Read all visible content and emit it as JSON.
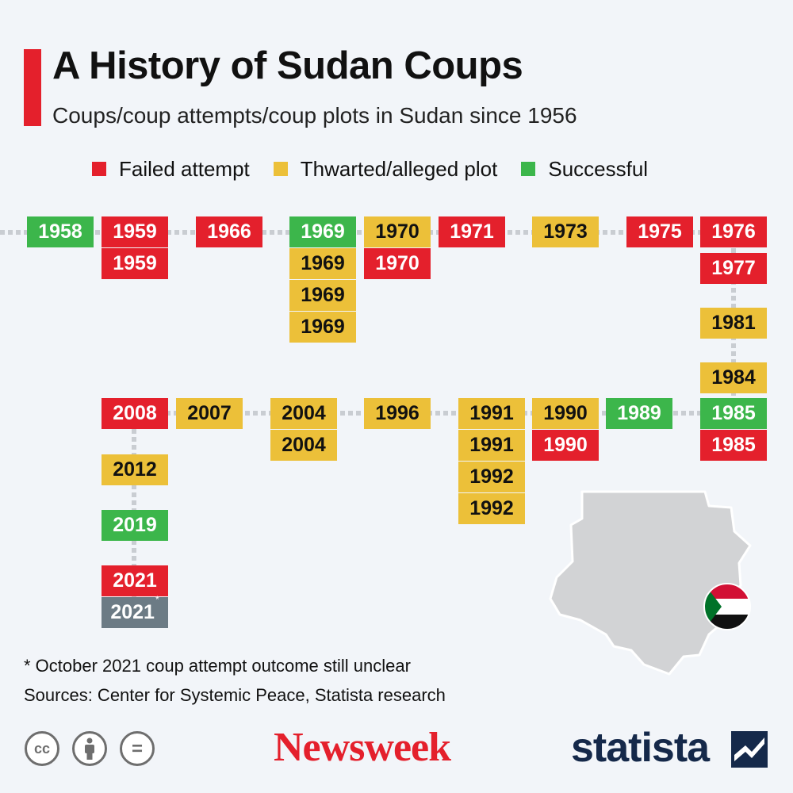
{
  "header": {
    "title": "A History of Sudan Coups",
    "subtitle": "Coups/coup attempts/coup plots in Sudan since 1956"
  },
  "legend": [
    {
      "label": "Failed attempt",
      "color": "#e4202c"
    },
    {
      "label": "Thwarted/alleged plot",
      "color": "#ecc039"
    },
    {
      "label": "Successful",
      "color": "#3cb64b"
    }
  ],
  "colors": {
    "failed": "#e4202c",
    "thwarted": "#ecc039",
    "successful": "#3cb64b",
    "unclear": "#6c7b85"
  },
  "timeline": {
    "row1": [
      {
        "label": "1958",
        "type": "successful"
      },
      {
        "label": "1959",
        "type": "failed"
      },
      {
        "label": "1959",
        "type": "failed"
      },
      {
        "label": "1966",
        "type": "failed"
      },
      {
        "label": "1969",
        "type": "successful"
      },
      {
        "label": "1969",
        "type": "thwarted"
      },
      {
        "label": "1969",
        "type": "thwarted"
      },
      {
        "label": "1969",
        "type": "thwarted"
      },
      {
        "label": "1970",
        "type": "thwarted"
      },
      {
        "label": "1970",
        "type": "failed"
      },
      {
        "label": "1971",
        "type": "failed"
      },
      {
        "label": "1973",
        "type": "thwarted"
      },
      {
        "label": "1975",
        "type": "failed"
      },
      {
        "label": "1976",
        "type": "failed"
      }
    ],
    "connector": [
      {
        "label": "1977",
        "type": "failed"
      },
      {
        "label": "1981",
        "type": "thwarted"
      },
      {
        "label": "1984",
        "type": "thwarted"
      }
    ],
    "row2": [
      {
        "label": "1985",
        "type": "successful"
      },
      {
        "label": "1985",
        "type": "failed"
      },
      {
        "label": "1989",
        "type": "successful"
      },
      {
        "label": "1990",
        "type": "thwarted"
      },
      {
        "label": "1990",
        "type": "failed"
      },
      {
        "label": "1991",
        "type": "thwarted"
      },
      {
        "label": "1991",
        "type": "thwarted"
      },
      {
        "label": "1992",
        "type": "thwarted"
      },
      {
        "label": "1992",
        "type": "thwarted"
      },
      {
        "label": "1996",
        "type": "thwarted"
      },
      {
        "label": "2004",
        "type": "thwarted"
      },
      {
        "label": "2004",
        "type": "thwarted"
      },
      {
        "label": "2007",
        "type": "thwarted"
      },
      {
        "label": "2008",
        "type": "failed"
      }
    ],
    "tail": [
      {
        "label": "2012",
        "type": "thwarted"
      },
      {
        "label": "2019",
        "type": "successful"
      },
      {
        "label": "2021",
        "type": "failed"
      },
      {
        "label": "2021",
        "type": "unclear",
        "marker": "*"
      }
    ]
  },
  "footer": {
    "note": "* October 2021 coup attempt outcome still unclear",
    "sources": "Sources: Center for Systemic Peace, Statista research",
    "license_icons": [
      {
        "name": "cc-icon",
        "text": "cc"
      },
      {
        "name": "attribution-icon",
        "text": ""
      },
      {
        "name": "no-derivatives-icon",
        "text": "="
      }
    ],
    "newsweek_logo": "Newsweek",
    "statista_logo": "statista"
  }
}
